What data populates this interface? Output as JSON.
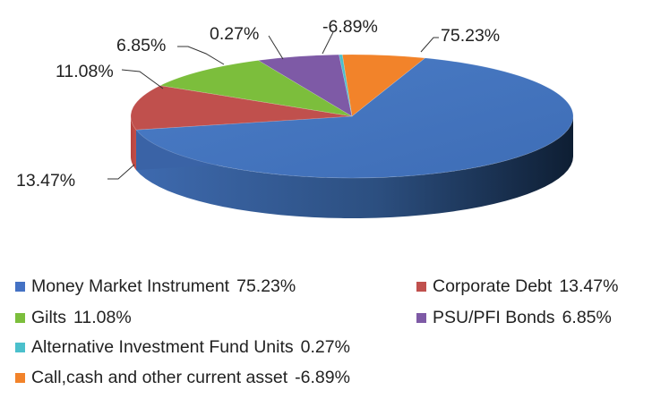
{
  "chart_data": {
    "type": "pie",
    "title": "",
    "slices": [
      {
        "label": "Money Market Instrument",
        "value": 75.23,
        "display": "75.23%",
        "color": "#4472C4"
      },
      {
        "label": "Corporate Debt",
        "value": 13.47,
        "display": "13.47%",
        "color": "#C0504D"
      },
      {
        "label": "Gilts",
        "value": 11.08,
        "display": "11.08%",
        "color": "#7CBE3C"
      },
      {
        "label": "PSU/PFI Bonds",
        "value": 6.85,
        "display": "6.85%",
        "color": "#7E5AA6"
      },
      {
        "label": "Alternative Investment Fund Units",
        "value": 0.27,
        "display": "0.27%",
        "color": "#4BC0CC"
      },
      {
        "label": "Call,cash and other current asset",
        "value": -6.89,
        "display": "-6.89%",
        "color": "#F2832A"
      }
    ],
    "legend": {
      "placement": "bottom",
      "items": [
        {
          "label": "Money Market Instrument",
          "value": "75.23%",
          "color": "#4472C4"
        },
        {
          "label": "Corporate Debt",
          "value": "13.47%",
          "color": "#C0504D"
        },
        {
          "label": "Gilts",
          "value": "11.08%",
          "color": "#7CBE3C"
        },
        {
          "label": "PSU/PFI Bonds",
          "value": "6.85%",
          "color": "#7E5AA6"
        },
        {
          "label": "Alternative Investment Fund Units",
          "value": "0.27%",
          "color": "#4BC0CC"
        },
        {
          "label": "Call,cash and other current asset",
          "value": "-6.89%",
          "color": "#F2832A"
        }
      ]
    }
  }
}
